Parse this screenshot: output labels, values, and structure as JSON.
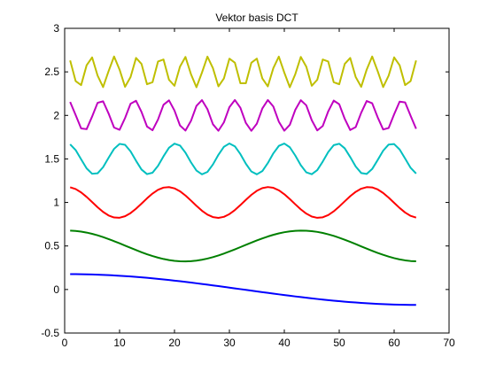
{
  "chart_data": {
    "type": "line",
    "title": "Vektor basis DCT",
    "xlabel": "",
    "ylabel": "",
    "xlim": [
      0,
      70
    ],
    "ylim": [
      -0.5,
      3
    ],
    "xticks": [
      0,
      10,
      20,
      30,
      40,
      50,
      60,
      70
    ],
    "yticks": [
      -0.5,
      0,
      0.5,
      1,
      1.5,
      2,
      2.5,
      3
    ],
    "xtick_labels": [
      "0",
      "10",
      "20",
      "30",
      "40",
      "50",
      "60",
      "70"
    ],
    "ytick_labels": [
      "-0.5",
      "0",
      "0.5",
      "1",
      "1.5",
      "2",
      "2.5",
      "3"
    ],
    "grid": false,
    "legend": "none",
    "n_points": 64,
    "series": [
      {
        "offset": 0.0,
        "frequency": 1,
        "amplitude": 0.177,
        "color": "#0000ff"
      },
      {
        "offset": 0.5,
        "frequency": 3,
        "amplitude": 0.177,
        "color": "#008000"
      },
      {
        "offset": 1.0,
        "frequency": 7,
        "amplitude": 0.177,
        "color": "#ff0000"
      },
      {
        "offset": 1.5,
        "frequency": 13,
        "amplitude": 0.177,
        "color": "#00bfbf"
      },
      {
        "offset": 2.0,
        "frequency": 21,
        "amplitude": 0.177,
        "color": "#bf00bf"
      },
      {
        "offset": 2.5,
        "frequency": 30,
        "amplitude": 0.177,
        "color": "#bfbf00"
      }
    ]
  }
}
